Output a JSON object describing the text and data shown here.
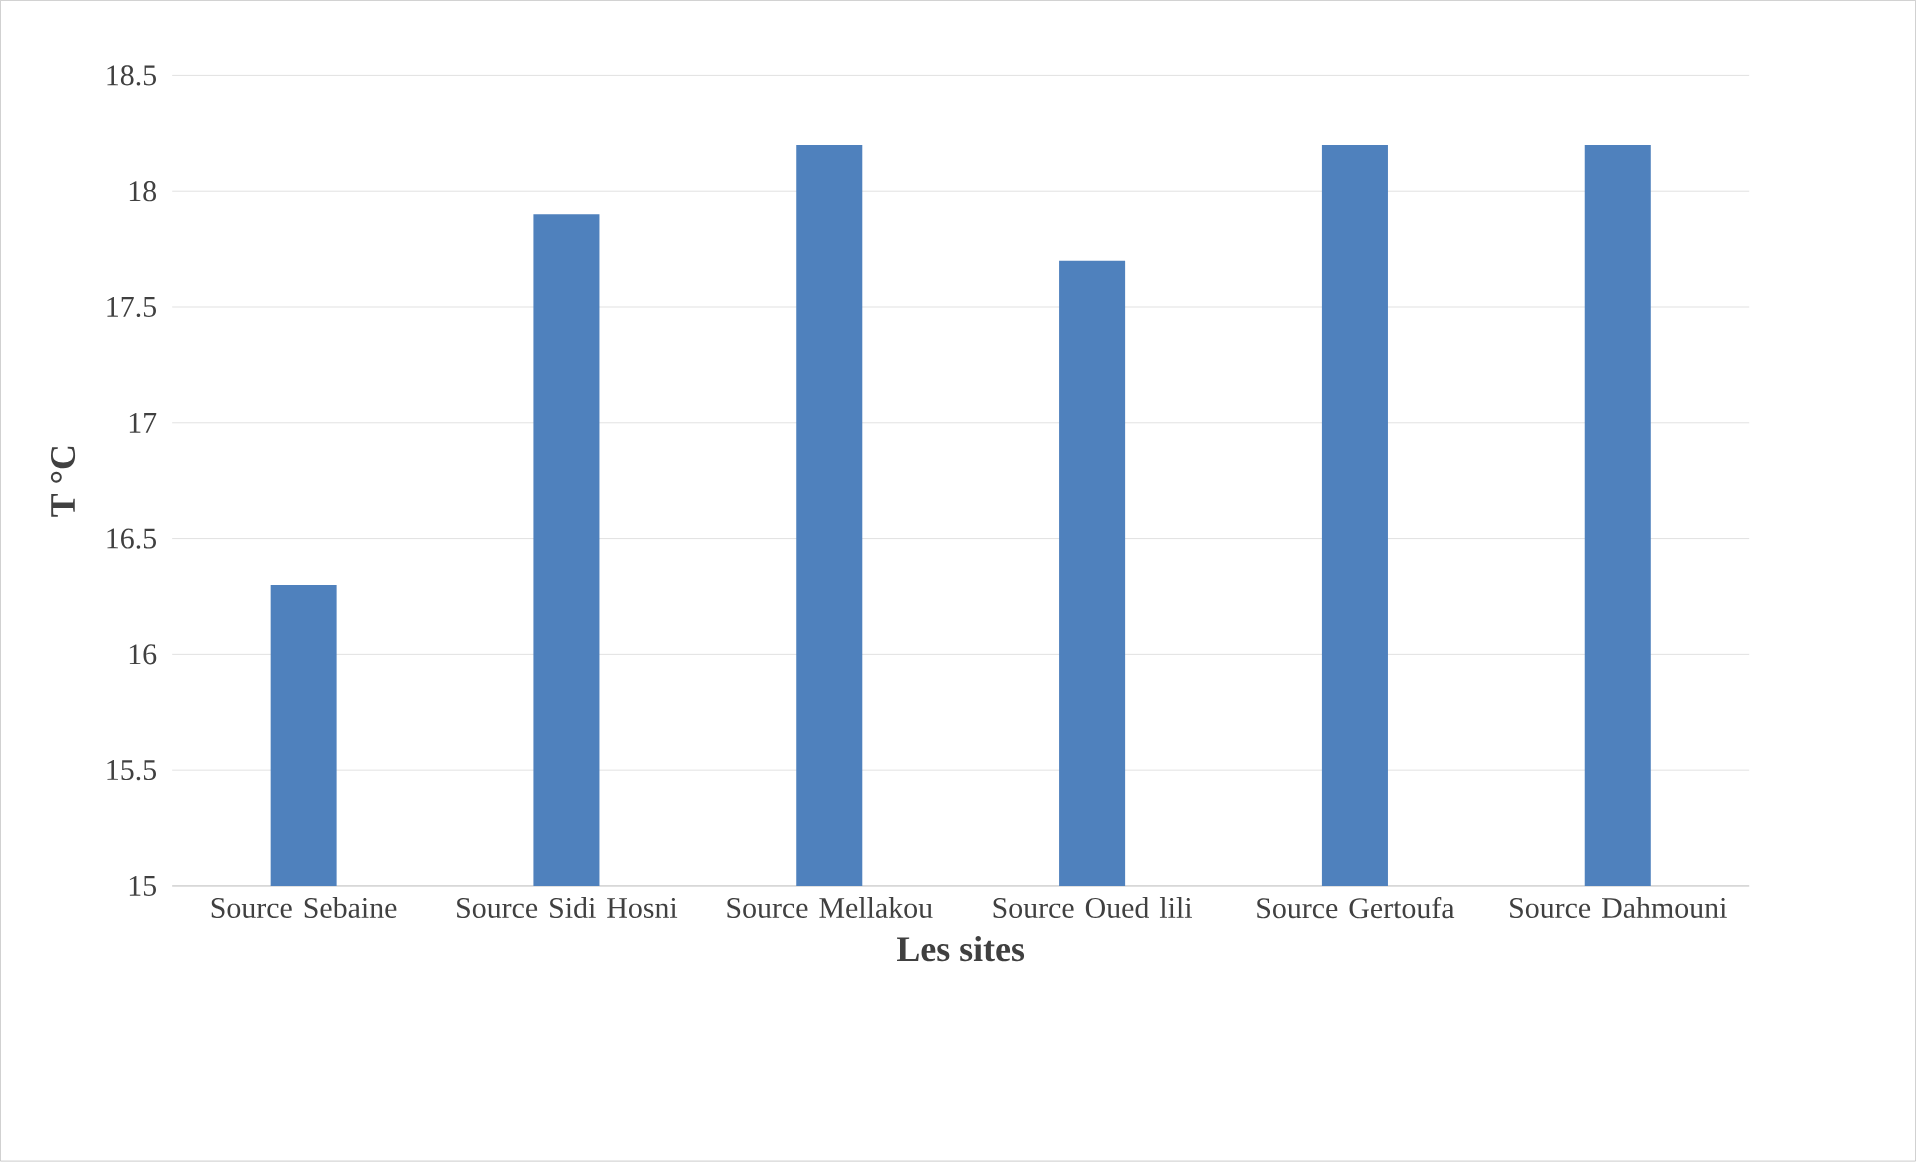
{
  "chart_data": {
    "type": "bar",
    "xlabel": "Les sites",
    "ylabel": "T °C",
    "categories": [
      "Source Sebaine",
      "Source Sidi Hosni",
      "Source Mellakou",
      "Source Oued lili",
      "Source Gertoufa",
      "Source Dahmouni"
    ],
    "values": [
      16.3,
      17.9,
      18.2,
      17.7,
      18.2,
      18.2
    ],
    "color": "#4f81bd",
    "ylim": [
      15,
      18.5
    ],
    "yticks": [
      15,
      15.5,
      16,
      16.5,
      17,
      17.5,
      18,
      18.5
    ],
    "grid": "y"
  }
}
